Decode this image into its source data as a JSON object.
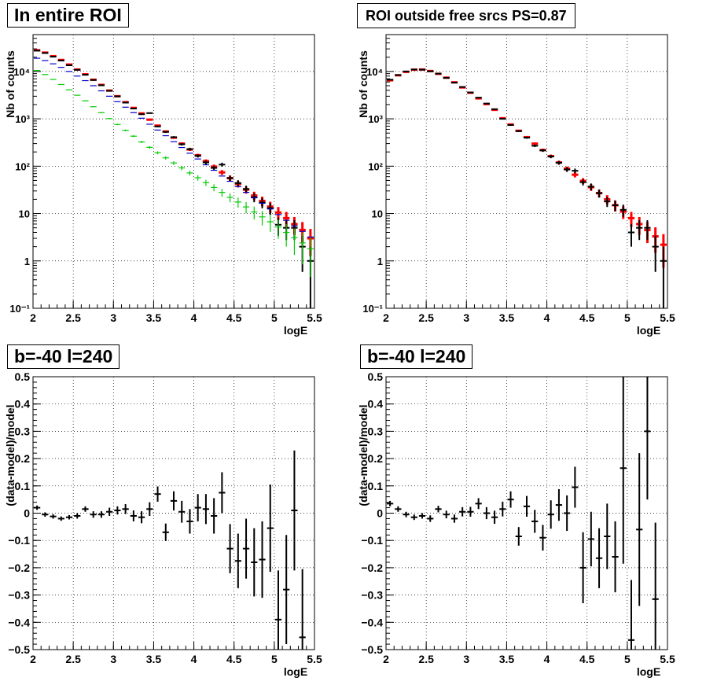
{
  "panels": {
    "top_left_title": "In entire ROI",
    "top_right_title": "ROI outside free srcs PS=0.87",
    "bottom_left_title": "b=-40 l=240",
    "bottom_right_title": "b=-40 l=240"
  },
  "colors": {
    "data": "#000000",
    "model_total": "#ff0000",
    "model_blue": "#0000cc",
    "model_green": "#00cc00",
    "grid": "#000000",
    "background": "#ffffff"
  },
  "chart_data": [
    {
      "type": "scatter",
      "title": "In entire ROI",
      "xlabel": "logE",
      "ylabel": "Nb of counts",
      "log_y": true,
      "grid": true,
      "xlim": [
        2,
        5.5
      ],
      "ylim": [
        0.1,
        60000
      ],
      "x_ticks": [
        2,
        2.5,
        3,
        3.5,
        4,
        4.5,
        5,
        5.5
      ],
      "y_ticks": [
        "10⁻¹",
        "1",
        "10",
        "10²",
        "10³",
        "10⁴"
      ],
      "bin_width": 0.1,
      "x": [
        2.05,
        2.15,
        2.25,
        2.35,
        2.45,
        2.55,
        2.65,
        2.75,
        2.85,
        2.95,
        3.05,
        3.15,
        3.25,
        3.35,
        3.45,
        3.55,
        3.65,
        3.75,
        3.85,
        3.95,
        4.05,
        4.15,
        4.25,
        4.35,
        4.45,
        4.55,
        4.65,
        4.75,
        4.85,
        4.95,
        5.05,
        5.15,
        5.25,
        5.35,
        5.45
      ],
      "series": [
        {
          "name": "",
          "style": "red_model",
          "values": [
            28000,
            25000,
            21000,
            17500,
            14000,
            11000,
            8700,
            6700,
            5200,
            3950,
            3000,
            2250,
            1700,
            1300,
            960,
            720,
            540,
            400,
            300,
            225,
            170,
            128,
            98,
            74,
            56,
            42,
            32,
            24,
            18.5,
            14,
            10.5,
            8,
            6,
            4.5,
            3
          ]
        },
        {
          "name": "",
          "style": "black_data",
          "values": [
            27500,
            24500,
            20500,
            17000,
            13500,
            10800,
            8500,
            6600,
            5100,
            3900,
            2980,
            2200,
            1650,
            1250,
            1320,
            690,
            530,
            410,
            290,
            230,
            165,
            120,
            92,
            108,
            56,
            44,
            33,
            22,
            17,
            13,
            5.8,
            5,
            5,
            2,
            1
          ]
        },
        {
          "name": "",
          "style": "blue_model",
          "values": [
            19000,
            17000,
            14500,
            12200,
            10000,
            8000,
            6400,
            5000,
            3900,
            3000,
            2300,
            1760,
            1350,
            1030,
            770,
            580,
            440,
            330,
            248,
            188,
            142,
            107,
            82,
            62,
            48,
            37,
            28,
            21.5,
            16.5,
            12.5,
            9.5,
            7.2,
            5.5,
            4.2,
            3.2
          ]
        },
        {
          "name": "",
          "style": "green_model",
          "values": [
            10500,
            8600,
            6800,
            5300,
            4100,
            3150,
            2400,
            1800,
            1350,
            1010,
            760,
            570,
            430,
            325,
            250,
            192,
            150,
            117,
            92,
            72,
            57,
            45,
            35.5,
            28,
            22,
            17.5,
            13.8,
            10.8,
            8.5,
            6.7,
            5.2,
            4,
            3.1,
            2.4,
            1.8
          ]
        }
      ]
    },
    {
      "type": "scatter",
      "title": "ROI outside free srcs PS=0.87",
      "xlabel": "logE",
      "ylabel": "Nb of counts",
      "log_y": true,
      "grid": true,
      "xlim": [
        2,
        5.5
      ],
      "ylim": [
        0.1,
        60000
      ],
      "x_ticks": [
        2,
        2.5,
        3,
        3.5,
        4,
        4.5,
        5,
        5.5
      ],
      "y_ticks": [
        "10⁻¹",
        "1",
        "10",
        "10²",
        "10³",
        "10⁴"
      ],
      "bin_width": 0.1,
      "x": [
        2.05,
        2.15,
        2.25,
        2.35,
        2.45,
        2.55,
        2.65,
        2.75,
        2.85,
        2.95,
        3.05,
        3.15,
        3.25,
        3.35,
        3.45,
        3.55,
        3.65,
        3.75,
        3.85,
        3.95,
        4.05,
        4.15,
        4.25,
        4.35,
        4.45,
        4.55,
        4.65,
        4.75,
        4.85,
        4.95,
        5.05,
        5.15,
        5.25,
        5.35,
        5.45
      ],
      "series": [
        {
          "name": "",
          "style": "red_model",
          "values": [
            6500,
            8300,
            9800,
            10900,
            11000,
            10200,
            8900,
            7400,
            5900,
            4600,
            3550,
            2700,
            2050,
            1550,
            1030,
            760,
            560,
            410,
            300,
            220,
            163,
            120,
            89,
            66,
            49,
            36,
            27,
            20,
            15,
            11,
            8,
            6,
            4.5,
            3.3,
            2.2
          ]
        },
        {
          "name": "",
          "style": "black_data",
          "values": [
            6700,
            8400,
            10000,
            11000,
            10900,
            10100,
            9000,
            7300,
            5800,
            4700,
            3600,
            2800,
            2100,
            1600,
            1000,
            740,
            550,
            400,
            270,
            215,
            160,
            118,
            85,
            80,
            46,
            37,
            27,
            18,
            15,
            12,
            4,
            5,
            5,
            2,
            1
          ]
        }
      ]
    },
    {
      "type": "scatter",
      "title": "b=-40 l=240",
      "xlabel": "logE",
      "ylabel": "(data-model)/model",
      "log_y": false,
      "grid": true,
      "xlim": [
        2,
        5.5
      ],
      "ylim": [
        -0.5,
        0.5
      ],
      "y_ticks": [
        -0.5,
        -0.4,
        -0.3,
        -0.2,
        -0.1,
        0,
        0.1,
        0.2,
        0.3,
        0.4,
        0.5
      ],
      "x_ticks": [
        2,
        2.5,
        3,
        3.5,
        4,
        4.5,
        5,
        5.5
      ],
      "bin_width": 0.1,
      "x": [
        2.05,
        2.15,
        2.25,
        2.35,
        2.45,
        2.55,
        2.65,
        2.75,
        2.85,
        2.95,
        3.05,
        3.15,
        3.25,
        3.35,
        3.45,
        3.55,
        3.65,
        3.75,
        3.85,
        3.95,
        4.05,
        4.15,
        4.25,
        4.35,
        4.45,
        4.55,
        4.65,
        4.75,
        4.85,
        4.95,
        5.05,
        5.15,
        5.25,
        5.35
      ],
      "values": [
        0.02,
        -0.005,
        -0.012,
        -0.02,
        -0.015,
        -0.01,
        0.015,
        -0.005,
        -0.005,
        0.005,
        0.01,
        0.015,
        -0.01,
        -0.015,
        0.015,
        0.07,
        -0.07,
        0.045,
        0.005,
        -0.03,
        0.02,
        0.015,
        -0.01,
        0.075,
        -0.13,
        -0.175,
        -0.13,
        -0.18,
        -0.17,
        -0.055,
        -0.39,
        -0.28,
        0.01,
        -0.455
      ],
      "errors": [
        0.008,
        0.008,
        0.008,
        0.008,
        0.008,
        0.01,
        0.01,
        0.012,
        0.012,
        0.015,
        0.015,
        0.018,
        0.02,
        0.022,
        0.025,
        0.028,
        0.032,
        0.035,
        0.04,
        0.045,
        0.05,
        0.055,
        0.065,
        0.075,
        0.09,
        0.1,
        0.11,
        0.125,
        0.14,
        0.16,
        0.18,
        0.2,
        0.22,
        0.25
      ]
    },
    {
      "type": "scatter",
      "title": "b=-40 l=240",
      "xlabel": "logE",
      "ylabel": "(data-model)/model",
      "log_y": false,
      "grid": true,
      "xlim": [
        2,
        5.5
      ],
      "ylim": [
        -0.5,
        0.5
      ],
      "y_ticks": [
        -0.5,
        -0.4,
        -0.3,
        -0.2,
        -0.1,
        0,
        0.1,
        0.2,
        0.3,
        0.4,
        0.5
      ],
      "x_ticks": [
        2,
        2.5,
        3,
        3.5,
        4,
        4.5,
        5,
        5.5
      ],
      "bin_width": 0.1,
      "x": [
        2.05,
        2.15,
        2.25,
        2.35,
        2.45,
        2.55,
        2.65,
        2.75,
        2.85,
        2.95,
        3.05,
        3.15,
        3.25,
        3.35,
        3.45,
        3.55,
        3.65,
        3.75,
        3.85,
        3.95,
        4.05,
        4.15,
        4.25,
        4.35,
        4.45,
        4.55,
        4.65,
        4.75,
        4.85,
        4.95,
        5.05,
        5.15,
        5.25,
        5.35
      ],
      "values": [
        0.035,
        0.015,
        -0.005,
        -0.015,
        -0.01,
        -0.02,
        0.015,
        -0.005,
        -0.02,
        0.005,
        0.005,
        0.035,
        0.0,
        -0.015,
        0.015,
        0.05,
        -0.085,
        0.025,
        -0.03,
        -0.09,
        -0.005,
        0.03,
        0.0,
        0.095,
        -0.2,
        -0.095,
        -0.165,
        -0.085,
        -0.16,
        0.165,
        -0.465,
        -0.06,
        0.3,
        -0.315
      ],
      "errors": [
        0.01,
        0.01,
        0.01,
        0.01,
        0.01,
        0.012,
        0.012,
        0.014,
        0.015,
        0.017,
        0.018,
        0.02,
        0.022,
        0.024,
        0.027,
        0.03,
        0.034,
        0.038,
        0.042,
        0.047,
        0.052,
        0.058,
        0.065,
        0.075,
        0.13,
        0.1,
        0.11,
        0.12,
        0.13,
        0.35,
        0.22,
        0.28,
        0.25,
        0.28
      ]
    }
  ]
}
